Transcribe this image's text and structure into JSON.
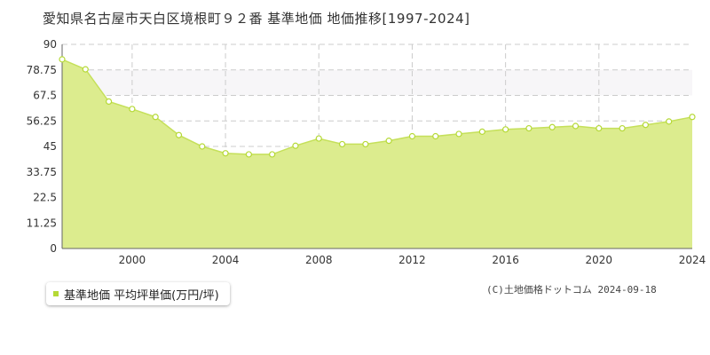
{
  "title": "愛知県名古屋市天白区境根町９２番 基準地価 地価推移[1997-2024]",
  "legend": {
    "label": "基準地価 平均坪単価(万円/坪)"
  },
  "copyright": "(C)土地価格ドットコム 2024-09-18",
  "colors": {
    "fill": "#dcec8e",
    "line": "#c5e05a",
    "point_stroke": "#b5d936",
    "band": "#f7f6f8",
    "grid": "#cccccc"
  },
  "chart_data": {
    "type": "area",
    "x": [
      1997,
      1998,
      1999,
      2000,
      2001,
      2002,
      2003,
      2004,
      2005,
      2006,
      2007,
      2008,
      2009,
      2010,
      2011,
      2012,
      2013,
      2014,
      2015,
      2016,
      2017,
      2018,
      2019,
      2020,
      2021,
      2022,
      2023,
      2024
    ],
    "series": [
      {
        "name": "基準地価 平均坪単価(万円/坪)",
        "values": [
          83.4,
          79.0,
          64.8,
          61.5,
          58.0,
          50.0,
          45.0,
          42.0,
          41.5,
          41.5,
          45.3,
          48.5,
          46.0,
          46.0,
          47.5,
          49.5,
          49.5,
          50.5,
          51.5,
          52.5,
          53.0,
          53.5,
          54.0,
          53.0,
          53.0,
          54.5,
          56.0,
          58.0
        ]
      }
    ],
    "xlim": [
      1997,
      2024
    ],
    "ylim": [
      0,
      90
    ],
    "yticks": [
      "0",
      "11.25",
      "22.5",
      "33.75",
      "45",
      "56.25",
      "67.5",
      "78.75",
      "90"
    ],
    "xticks": [
      "2000",
      "2004",
      "2008",
      "2012",
      "2016",
      "2020",
      "2024"
    ],
    "band": [
      67.5,
      78.75
    ],
    "grid": true,
    "legend_position": "bottom-left"
  }
}
